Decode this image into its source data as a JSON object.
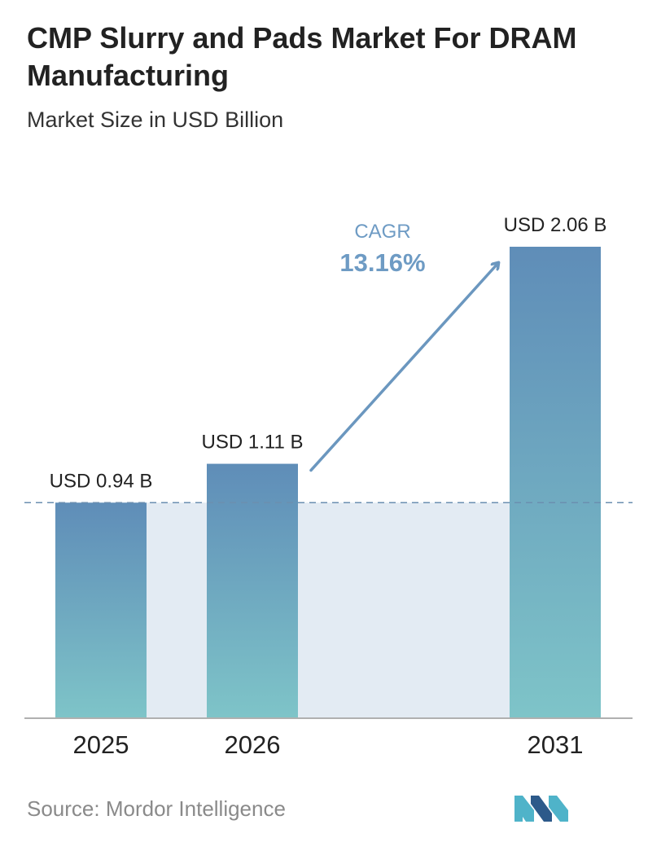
{
  "title": "CMP Slurry and Pads Market For DRAM Manufacturing",
  "subtitle": "Market Size in USD Billion",
  "source": "Source:  Mordor Intelligence",
  "cagr": {
    "label": "CAGR",
    "value": "13.16%"
  },
  "colors": {
    "bar_top": "#5f8db8",
    "bar_bottom": "#7ec4c8",
    "band": "#e3ebf3",
    "dashed_line": "#6b8fb0",
    "arrow": "#6b97bf",
    "cagr_text": "#6e9bc4",
    "logo_dark": "#2d5a8a",
    "logo_light": "#4fb3c9"
  },
  "chart_data": {
    "type": "bar",
    "categories": [
      "2025",
      "2026",
      "2031"
    ],
    "values": [
      0.94,
      1.11,
      2.06
    ],
    "value_labels": [
      "USD 0.94 B",
      "USD 1.11 B",
      "USD 2.06 B"
    ],
    "title": "CMP Slurry and Pads Market For DRAM Manufacturing",
    "subtitle": "Market Size in USD Billion",
    "unit": "USD Billion",
    "ylim": [
      0,
      2.06
    ],
    "grid": false,
    "legend": "none",
    "reference_line": 0.94
  }
}
